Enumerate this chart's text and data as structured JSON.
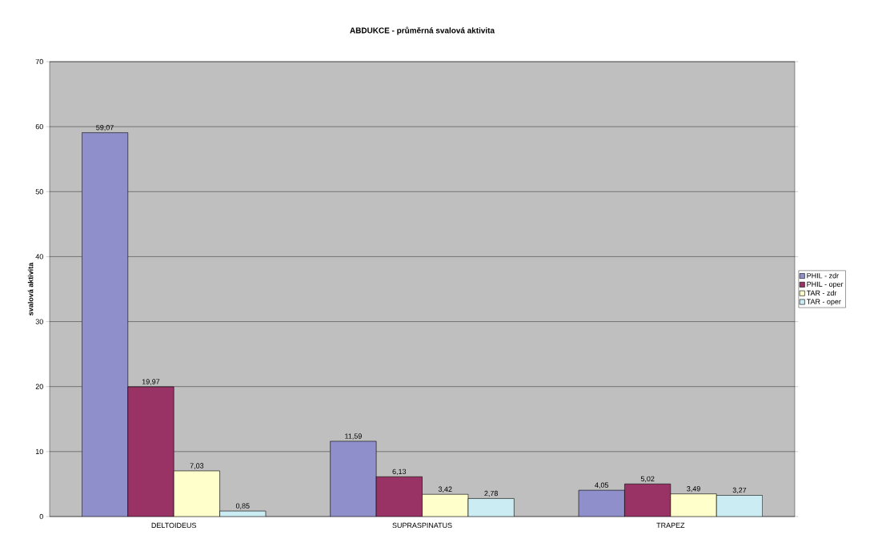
{
  "chart_data": {
    "type": "bar",
    "title": "ABDUKCE - průměrná svalová aktivita",
    "ylabel": "svalová aktivita",
    "categories": [
      "DELTOIDEUS",
      "SUPRASPINATUS",
      "TRAPEZ"
    ],
    "series": [
      {
        "name": "PHIL - zdr",
        "color": "#8f8fcc",
        "values": [
          59.07,
          11.59,
          4.05
        ],
        "value_labels": [
          "59,07",
          "11,59",
          "4,05"
        ]
      },
      {
        "name": "PHIL - oper",
        "color": "#993366",
        "values": [
          19.97,
          6.13,
          5.02
        ],
        "value_labels": [
          "19,97",
          "6,13",
          "5,02"
        ]
      },
      {
        "name": "TAR - zdr",
        "color": "#ffffcc",
        "values": [
          7.03,
          3.42,
          3.49
        ],
        "value_labels": [
          "7,03",
          "3,42",
          "3,49"
        ]
      },
      {
        "name": "TAR - oper",
        "color": "#ccecf4",
        "values": [
          0.85,
          2.78,
          3.27
        ],
        "value_labels": [
          "0,85",
          "2,78",
          "3,27"
        ]
      }
    ],
    "ylim": [
      0,
      70
    ],
    "yticks": [
      0,
      10,
      20,
      30,
      40,
      50,
      60,
      70
    ],
    "grid": "y",
    "legend": "right"
  }
}
